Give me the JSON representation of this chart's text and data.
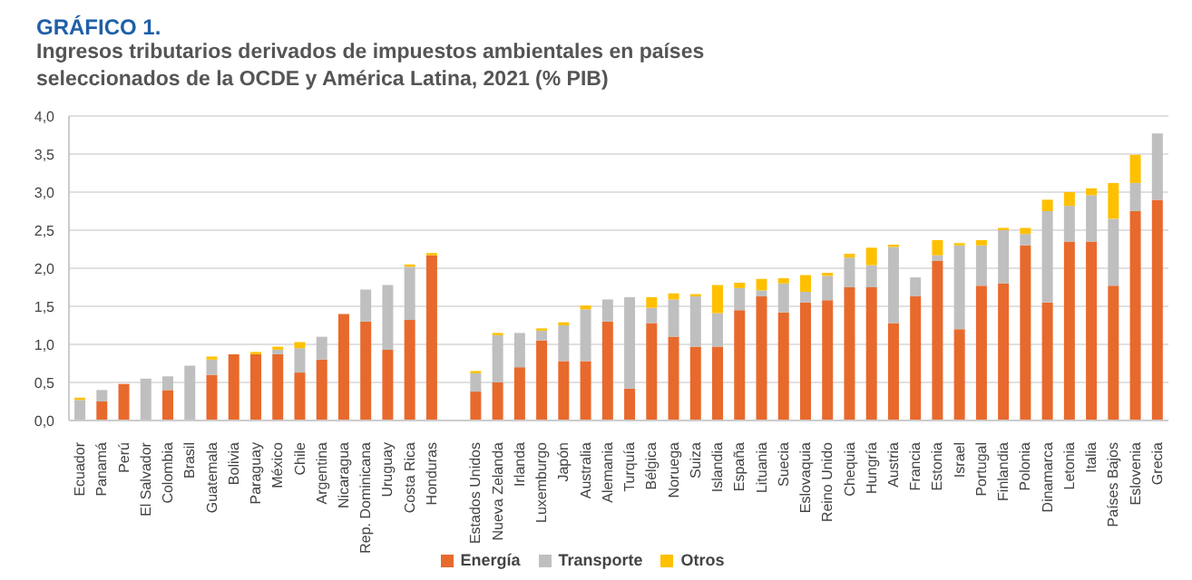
{
  "chart_data": {
    "type": "bar",
    "title": "GRÁFICO 1.",
    "subtitle": "Ingresos tributarios derivados de impuestos ambientales en países seleccionados de la OCDE y América Latina, 2021 (% PIB)",
    "categories": [
      "Ecuador",
      "Panamá",
      "Perú",
      "El Salvador",
      "Colombia",
      "Brasil",
      "Guatemala",
      "Bolivia",
      "Paraguay",
      "México",
      "Chile",
      "Argentina",
      "Nicaragua",
      "Rep. Dominicana",
      "Uruguay",
      "Costa Rica",
      "Honduras",
      null,
      "Estados Unidos",
      "Nueva Zelanda",
      "Irlanda",
      "Luxemburgo",
      "Japón",
      "Australia",
      "Alemania",
      "Turquía",
      "Bélgica",
      "Noruega",
      "Suiza",
      "Islandia",
      "España",
      "Lituania",
      "Suecia",
      "Eslovaquia",
      "Reino Unido",
      "Chequia",
      "Hungría",
      "Austria",
      "Francia",
      "Estonia",
      "Israel",
      "Portugal",
      "Finlandia",
      "Polonia",
      "Dinamarca",
      "Letonia",
      "Italia",
      "Países Bajos",
      "Eslovenia",
      "Grecia"
    ],
    "stacked": true,
    "series": [
      {
        "name": "Energía",
        "color": "#e8692c",
        "values": [
          0,
          0.25,
          0.48,
          0,
          0.4,
          0,
          0.6,
          0.87,
          0.87,
          0.87,
          0.63,
          0.8,
          1.4,
          1.3,
          0.93,
          1.32,
          2.17,
          null,
          0.38,
          0.5,
          0.7,
          1.05,
          0.78,
          0.78,
          1.3,
          0.42,
          1.28,
          1.1,
          0.97,
          0.97,
          1.45,
          1.63,
          1.42,
          1.55,
          1.58,
          1.75,
          1.75,
          1.28,
          1.63,
          2.1,
          1.2,
          1.77,
          1.8,
          2.3,
          1.55,
          2.35,
          2.35,
          1.77,
          2.75,
          2.9
        ]
      },
      {
        "name": "Transporte",
        "color": "#bfbfbf",
        "values": [
          0.27,
          0.15,
          null,
          0.55,
          0.18,
          0.72,
          0.2,
          null,
          null,
          0.06,
          0.32,
          0.3,
          null,
          0.42,
          0.85,
          0.7,
          0,
          null,
          0.24,
          0.62,
          0.45,
          0.13,
          0.47,
          0.68,
          0.29,
          1.2,
          0.2,
          0.49,
          0.66,
          0.44,
          0.29,
          0.08,
          0.38,
          0.14,
          0.32,
          0.39,
          0.29,
          1,
          0.25,
          0.07,
          1.1,
          0.53,
          0.7,
          0.15,
          1.2,
          0.47,
          0.61,
          0.88,
          0.37,
          0.87
        ]
      },
      {
        "name": "Otros",
        "color": "#ffc000",
        "values": [
          0.03,
          0,
          0,
          0,
          0,
          0,
          0.04,
          0,
          0.03,
          0.04,
          0.08,
          0,
          0,
          0,
          0,
          0.03,
          0.03,
          null,
          0.03,
          0.03,
          0,
          0.03,
          0.04,
          0.05,
          0,
          0,
          0.14,
          0.08,
          0.03,
          0.37,
          0.07,
          0.15,
          0.07,
          0.22,
          0.04,
          0.05,
          0.23,
          0.03,
          0,
          0.2,
          0.03,
          0.07,
          0.03,
          0.08,
          0.15,
          0.18,
          0.09,
          0.47,
          0.37,
          0
        ]
      }
    ],
    "ylim": [
      0,
      4
    ],
    "yticks": [
      {
        "value": 0,
        "label": "0,0"
      },
      {
        "value": 0.5,
        "label": "0,5"
      },
      {
        "value": 1,
        "label": "1,0"
      },
      {
        "value": 1.5,
        "label": "1,5"
      },
      {
        "value": 2,
        "label": "2,0"
      },
      {
        "value": 2.5,
        "label": "2,5"
      },
      {
        "value": 3,
        "label": "3,0"
      },
      {
        "value": 3.5,
        "label": "3,5"
      },
      {
        "value": 4,
        "label": "4,0"
      }
    ],
    "grid": "y",
    "legend": "bottom"
  }
}
